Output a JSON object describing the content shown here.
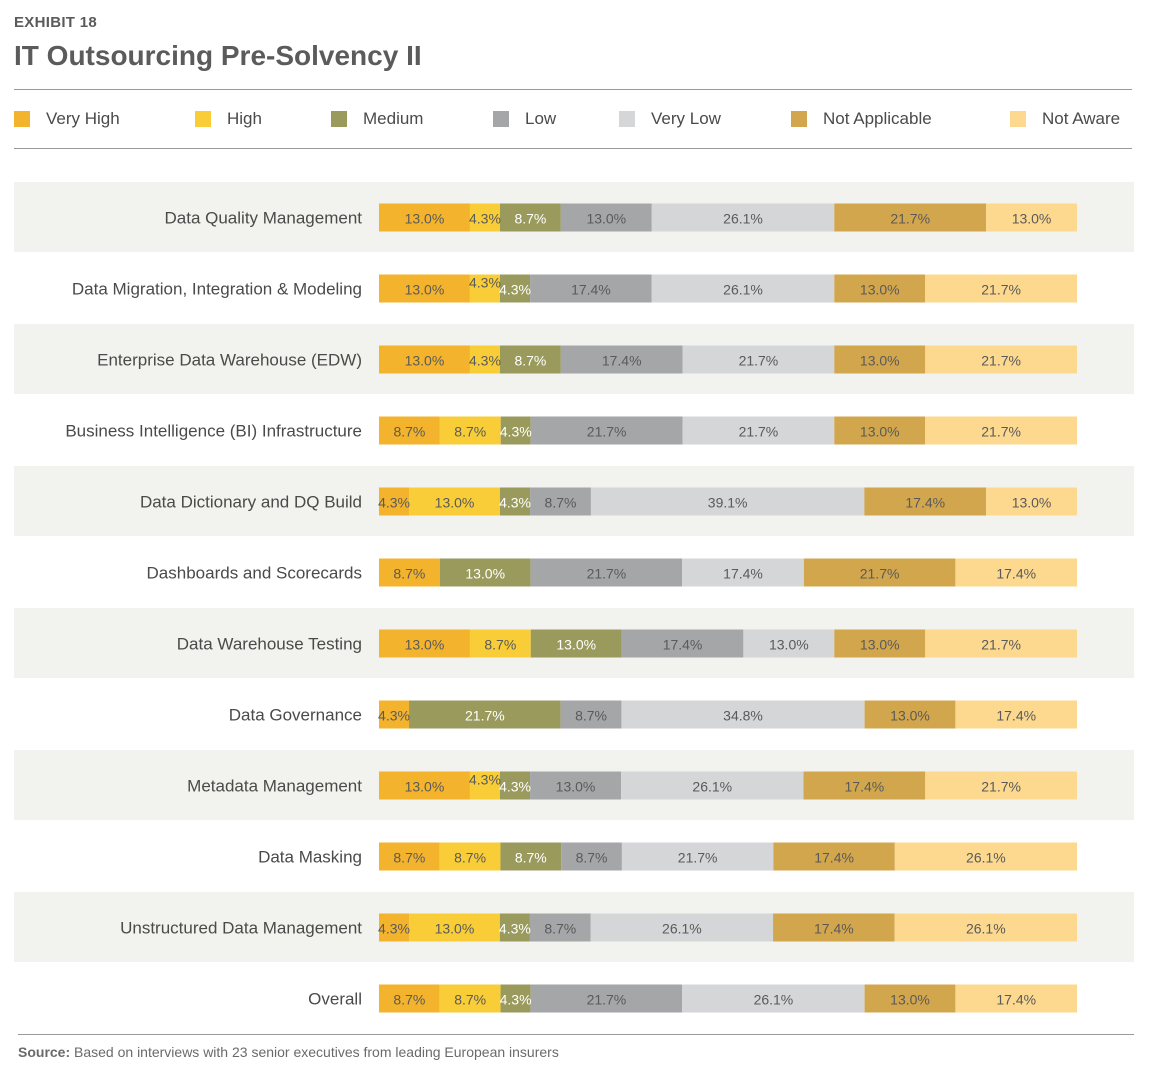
{
  "header": {
    "exhibit": "EXHIBIT 18",
    "title": "IT Outsourcing Pre-Solvency II"
  },
  "legend": [
    {
      "label": "Very High",
      "color": "#f4b32c"
    },
    {
      "label": "High",
      "color": "#f8cd38"
    },
    {
      "label": "Medium",
      "color": "#9a9a5d"
    },
    {
      "label": "Low",
      "color": "#a4a6a8"
    },
    {
      "label": "Very Low",
      "color": "#d5d6d8"
    },
    {
      "label": "Not Applicable",
      "color": "#d2a64c"
    },
    {
      "label": "Not Aware",
      "color": "#fcd98f"
    }
  ],
  "chart_data": {
    "type": "bar",
    "orientation": "horizontal",
    "stacked": true,
    "stacking": "100%",
    "categories": [
      "Data Quality Management",
      "Data Migration, Integration & Modeling",
      "Enterprise Data Warehouse (EDW)",
      "Business Intelligence (BI) Infrastructure",
      "Data Dictionary and DQ Build",
      "Dashboards and Scorecards",
      "Data Warehouse Testing",
      "Data Governance",
      "Metadata Management",
      "Data Masking",
      "Unstructured Data Management",
      "Overall"
    ],
    "series": [
      {
        "name": "Very High",
        "values": [
          13.0,
          13.0,
          13.0,
          8.7,
          4.3,
          8.7,
          13.0,
          4.3,
          13.0,
          8.7,
          4.3,
          8.7
        ]
      },
      {
        "name": "High",
        "values": [
          4.3,
          4.3,
          4.3,
          8.7,
          13.0,
          0,
          8.7,
          0,
          4.3,
          8.7,
          13.0,
          8.7
        ]
      },
      {
        "name": "Medium",
        "values": [
          8.7,
          4.3,
          8.7,
          4.3,
          4.3,
          13.0,
          13.0,
          21.7,
          4.3,
          8.7,
          4.3,
          4.3
        ]
      },
      {
        "name": "Low",
        "values": [
          13.0,
          17.4,
          17.4,
          21.7,
          8.7,
          21.7,
          17.4,
          8.7,
          13.0,
          8.7,
          8.7,
          21.7
        ]
      },
      {
        "name": "Very Low",
        "values": [
          26.1,
          26.1,
          21.7,
          21.7,
          39.1,
          17.4,
          13.0,
          34.8,
          26.1,
          21.7,
          26.1,
          26.1
        ]
      },
      {
        "name": "Not Applicable",
        "values": [
          21.7,
          13.0,
          13.0,
          13.0,
          17.4,
          21.7,
          13.0,
          13.0,
          17.4,
          17.4,
          17.4,
          13.0
        ]
      },
      {
        "name": "Not Aware",
        "values": [
          13.0,
          21.7,
          21.7,
          21.7,
          13.0,
          17.4,
          21.7,
          17.4,
          21.7,
          26.1,
          26.1,
          17.4
        ]
      }
    ],
    "value_labels": "percent with one decimal",
    "legend_position": "top",
    "alternating_row_shading": true
  },
  "footer": {
    "source_label": "Source:",
    "source_text": "Based on interviews with 23 senior executives from leading European insurers"
  }
}
